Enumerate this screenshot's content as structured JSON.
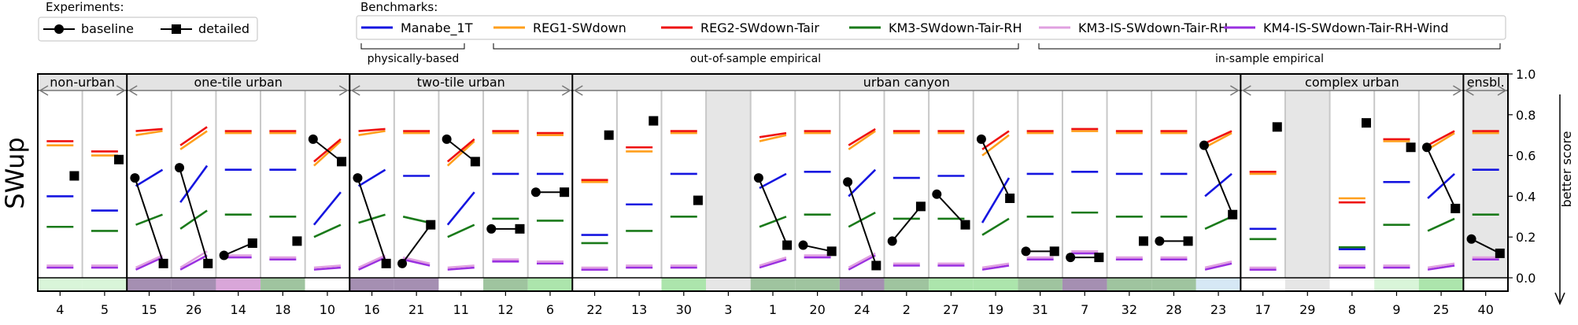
{
  "legends": {
    "experiments_title": "Experiments:",
    "benchmarks_title": "Benchmarks:",
    "experiments": [
      {
        "name": "baseline",
        "marker": "circle"
      },
      {
        "name": "detailed",
        "marker": "square"
      }
    ],
    "benchmarks": [
      {
        "name": "Manabe_1T",
        "color": "#1515e0"
      },
      {
        "name": "REG1-SWdown",
        "color": "#ff9f1c"
      },
      {
        "name": "REG2-SWdown-Tair",
        "color": "#ee1111"
      },
      {
        "name": "KM3-SWdown-Tair-RH",
        "color": "#1a7a1a"
      },
      {
        "name": "KM3-IS-SWdown-Tair-RH",
        "color": "#e0a0e0"
      },
      {
        "name": "KM4-IS-SWdown-Tair-RH-Wind",
        "color": "#9a30e0"
      }
    ],
    "benchmark_groups": [
      "physically-based",
      "out-of-sample empirical",
      "in-sample empirical"
    ]
  },
  "chart_data": {
    "type": "scatter",
    "ylabel": "SWup",
    "ylim": [
      0.0,
      1.0
    ],
    "yticks": [
      "0.0",
      "0.2",
      "0.4",
      "0.6",
      "0.8",
      "1.0"
    ],
    "better_score_label": "better score",
    "groups": [
      {
        "label": "non-urban",
        "columns": [
          0,
          1
        ]
      },
      {
        "label": "one-tile urban",
        "columns": [
          2,
          6
        ]
      },
      {
        "label": "two-tile urban",
        "columns": [
          7,
          11
        ]
      },
      {
        "label": "urban canyon",
        "columns": [
          12,
          26
        ]
      },
      {
        "label": "complex urban",
        "columns": [
          27,
          31
        ]
      },
      {
        "label": "ensbl.",
        "columns": [
          32,
          32
        ]
      }
    ],
    "sites": [
      {
        "id": "4",
        "grey": false,
        "baseline": null,
        "detailed": 0.5,
        "manabe": 0.4,
        "reg1": 0.65,
        "reg2": 0.67,
        "km3": 0.25,
        "km3is": 0.06,
        "km4is": 0.05,
        "strip": "#d9f5d9"
      },
      {
        "id": "5",
        "grey": false,
        "baseline": null,
        "detailed": 0.58,
        "manabe": 0.33,
        "reg1": 0.6,
        "reg2": 0.62,
        "km3": 0.23,
        "km3is": 0.06,
        "km4is": 0.05,
        "strip": "#d9f5d9"
      },
      {
        "id": "15",
        "grey": false,
        "baseline": 0.49,
        "detailed": 0.07,
        "manabe": [
          0.45,
          0.53
        ],
        "reg1": [
          0.7,
          0.72
        ],
        "reg2": [
          0.72,
          0.73
        ],
        "km3": [
          0.26,
          0.31
        ],
        "km3is": [
          0.05,
          0.11
        ],
        "km4is": [
          0.04,
          0.1
        ],
        "strip": "#a58fb2"
      },
      {
        "id": "26",
        "grey": false,
        "baseline": 0.54,
        "detailed": 0.07,
        "manabe": [
          0.37,
          0.55
        ],
        "reg1": [
          0.63,
          0.72
        ],
        "reg2": [
          0.65,
          0.74
        ],
        "km3": [
          0.24,
          0.33
        ],
        "km3is": [
          0.05,
          0.13
        ],
        "km4is": [
          0.04,
          0.11
        ],
        "strip": "#a58fb2"
      },
      {
        "id": "14",
        "grey": false,
        "baseline": 0.11,
        "detailed": 0.17,
        "manabe": 0.53,
        "reg1": 0.71,
        "reg2": 0.72,
        "km3": 0.31,
        "km3is": 0.11,
        "km4is": 0.1,
        "strip": "#d9a6d9"
      },
      {
        "id": "18",
        "grey": false,
        "baseline": null,
        "detailed": 0.18,
        "manabe": 0.53,
        "reg1": 0.71,
        "reg2": 0.72,
        "km3": 0.3,
        "km3is": 0.1,
        "km4is": 0.09,
        "strip": "#9fc49f"
      },
      {
        "id": "10",
        "grey": false,
        "baseline": 0.68,
        "detailed": 0.57,
        "manabe": [
          0.26,
          0.42
        ],
        "reg1": [
          0.55,
          0.67
        ],
        "reg2": [
          0.57,
          0.68
        ],
        "km3": [
          0.2,
          0.26
        ],
        "km3is": [
          0.05,
          0.06
        ],
        "km4is": [
          0.04,
          0.05
        ],
        "strip": "#ffffff"
      },
      {
        "id": "16",
        "grey": false,
        "baseline": 0.49,
        "detailed": 0.07,
        "manabe": [
          0.45,
          0.53
        ],
        "reg1": [
          0.7,
          0.72
        ],
        "reg2": [
          0.72,
          0.73
        ],
        "km3": [
          0.27,
          0.31
        ],
        "km3is": [
          0.05,
          0.11
        ],
        "km4is": [
          0.04,
          0.1
        ],
        "strip": "#a58fb2"
      },
      {
        "id": "21",
        "grey": false,
        "baseline": 0.07,
        "detailed": 0.26,
        "manabe": 0.5,
        "reg1": 0.71,
        "reg2": 0.72,
        "km3": [
          0.3,
          0.27
        ],
        "km3is": [
          0.1,
          0.07
        ],
        "km4is": [
          0.09,
          0.06
        ],
        "strip": "#a58fb2"
      },
      {
        "id": "11",
        "grey": false,
        "baseline": 0.68,
        "detailed": 0.57,
        "manabe": [
          0.26,
          0.42
        ],
        "reg1": [
          0.55,
          0.67
        ],
        "reg2": [
          0.57,
          0.68
        ],
        "km3": [
          0.2,
          0.26
        ],
        "km3is": [
          0.05,
          0.06
        ],
        "km4is": [
          0.04,
          0.05
        ],
        "strip": "#ffffff"
      },
      {
        "id": "12",
        "grey": false,
        "baseline": 0.24,
        "detailed": 0.24,
        "manabe": 0.51,
        "reg1": 0.71,
        "reg2": 0.72,
        "km3": 0.29,
        "km3is": 0.09,
        "km4is": 0.08,
        "strip": "#9fc49f"
      },
      {
        "id": "6",
        "grey": false,
        "baseline": 0.42,
        "detailed": 0.42,
        "manabe": 0.51,
        "reg1": 0.7,
        "reg2": 0.71,
        "km3": 0.28,
        "km3is": 0.08,
        "km4is": 0.07,
        "strip": "#ace5ac"
      },
      {
        "id": "22",
        "grey": false,
        "baseline": null,
        "detailed": 0.7,
        "manabe": 0.21,
        "reg1": 0.47,
        "reg2": 0.48,
        "km3": 0.17,
        "km3is": 0.05,
        "km4is": 0.04,
        "strip": "#ffffff"
      },
      {
        "id": "13",
        "grey": false,
        "baseline": null,
        "detailed": 0.77,
        "manabe": 0.36,
        "reg1": 0.62,
        "reg2": 0.64,
        "km3": 0.23,
        "km3is": 0.06,
        "km4is": 0.05,
        "strip": "#ffffff"
      },
      {
        "id": "30",
        "grey": false,
        "baseline": null,
        "detailed": 0.38,
        "manabe": 0.51,
        "reg1": 0.71,
        "reg2": 0.72,
        "km3": 0.3,
        "km3is": 0.06,
        "km4is": 0.05,
        "strip": "#ace5ac"
      },
      {
        "id": "3",
        "grey": true,
        "baseline": null,
        "detailed": null,
        "manabe": null,
        "reg1": null,
        "reg2": null,
        "km3": null,
        "km3is": null,
        "km4is": null,
        "strip": "#e6e6e6"
      },
      {
        "id": "1",
        "grey": false,
        "baseline": 0.49,
        "detailed": 0.16,
        "manabe": [
          0.44,
          0.51
        ],
        "reg1": [
          0.67,
          0.7
        ],
        "reg2": [
          0.69,
          0.71
        ],
        "km3": [
          0.25,
          0.3
        ],
        "km3is": [
          0.06,
          0.1
        ],
        "km4is": [
          0.05,
          0.09
        ],
        "strip": "#9fc49f"
      },
      {
        "id": "20",
        "grey": false,
        "baseline": 0.16,
        "detailed": 0.13,
        "manabe": 0.52,
        "reg1": 0.71,
        "reg2": 0.72,
        "km3": 0.31,
        "km3is": 0.11,
        "km4is": 0.1,
        "strip": "#9fc49f"
      },
      {
        "id": "24",
        "grey": false,
        "baseline": 0.47,
        "detailed": 0.06,
        "manabe": [
          0.4,
          0.53
        ],
        "reg1": [
          0.63,
          0.72
        ],
        "reg2": [
          0.65,
          0.73
        ],
        "km3": [
          0.25,
          0.32
        ],
        "km3is": [
          0.05,
          0.12
        ],
        "km4is": [
          0.04,
          0.11
        ],
        "strip": "#a58fb2"
      },
      {
        "id": "2",
        "grey": false,
        "baseline": 0.18,
        "detailed": 0.35,
        "manabe": 0.49,
        "reg1": 0.71,
        "reg2": 0.72,
        "km3": 0.29,
        "km3is": 0.07,
        "km4is": 0.06,
        "strip": "#9fc49f"
      },
      {
        "id": "27",
        "grey": false,
        "baseline": 0.41,
        "detailed": 0.26,
        "manabe": 0.5,
        "reg1": 0.71,
        "reg2": 0.72,
        "km3": 0.29,
        "km3is": 0.07,
        "km4is": 0.06,
        "strip": "#ace5ac"
      },
      {
        "id": "19",
        "grey": false,
        "baseline": 0.68,
        "detailed": 0.39,
        "manabe": [
          0.27,
          0.49
        ],
        "reg1": [
          0.6,
          0.7
        ],
        "reg2": [
          0.63,
          0.72
        ],
        "km3": [
          0.21,
          0.29
        ],
        "km3is": [
          0.05,
          0.07
        ],
        "km4is": [
          0.04,
          0.06
        ],
        "strip": "#ace5ac"
      },
      {
        "id": "31",
        "grey": false,
        "baseline": 0.13,
        "detailed": 0.13,
        "manabe": 0.51,
        "reg1": 0.71,
        "reg2": 0.72,
        "km3": 0.3,
        "km3is": 0.1,
        "km4is": 0.09,
        "strip": "#9fc49f"
      },
      {
        "id": "7",
        "grey": false,
        "baseline": 0.1,
        "detailed": 0.1,
        "manabe": 0.52,
        "reg1": 0.72,
        "reg2": 0.73,
        "km3": 0.32,
        "km3is": 0.13,
        "km4is": 0.12,
        "strip": "#a58fb2"
      },
      {
        "id": "32",
        "grey": false,
        "baseline": null,
        "detailed": 0.18,
        "manabe": 0.51,
        "reg1": 0.71,
        "reg2": 0.72,
        "km3": 0.3,
        "km3is": 0.1,
        "km4is": 0.09,
        "strip": "#9fc49f"
      },
      {
        "id": "28",
        "grey": false,
        "baseline": 0.18,
        "detailed": 0.18,
        "manabe": 0.51,
        "reg1": 0.71,
        "reg2": 0.72,
        "km3": 0.3,
        "km3is": 0.1,
        "km4is": 0.09,
        "strip": "#9fc49f"
      },
      {
        "id": "23",
        "grey": false,
        "baseline": 0.65,
        "detailed": 0.31,
        "manabe": [
          0.4,
          0.51
        ],
        "reg1": [
          0.64,
          0.71
        ],
        "reg2": [
          0.66,
          0.72
        ],
        "km3": [
          0.24,
          0.3
        ],
        "km3is": [
          0.05,
          0.08
        ],
        "km4is": [
          0.04,
          0.07
        ],
        "strip": "#d6e8f5"
      },
      {
        "id": "17",
        "grey": false,
        "baseline": null,
        "detailed": 0.74,
        "manabe": 0.24,
        "reg1": 0.51,
        "reg2": 0.52,
        "km3": 0.19,
        "km3is": 0.05,
        "km4is": 0.04,
        "strip": "#ffffff"
      },
      {
        "id": "29",
        "grey": true,
        "baseline": null,
        "detailed": null,
        "manabe": null,
        "reg1": null,
        "reg2": null,
        "km3": null,
        "km3is": null,
        "km4is": null,
        "strip": "#e6e6e6"
      },
      {
        "id": "8",
        "grey": false,
        "baseline": null,
        "detailed": 0.76,
        "manabe": 0.14,
        "reg1": 0.39,
        "reg2": 0.37,
        "km3": 0.15,
        "km3is": 0.06,
        "km4is": 0.05,
        "strip": "#ffffff"
      },
      {
        "id": "9",
        "grey": false,
        "baseline": null,
        "detailed": 0.64,
        "manabe": 0.47,
        "reg1": 0.67,
        "reg2": 0.68,
        "km3": 0.26,
        "km3is": 0.06,
        "km4is": 0.05,
        "strip": "#d9f5d9"
      },
      {
        "id": "25",
        "grey": false,
        "baseline": 0.64,
        "detailed": 0.34,
        "manabe": [
          0.39,
          0.51
        ],
        "reg1": [
          0.63,
          0.71
        ],
        "reg2": [
          0.65,
          0.72
        ],
        "km3": [
          0.23,
          0.29
        ],
        "km3is": [
          0.05,
          0.07
        ],
        "km4is": [
          0.04,
          0.06
        ],
        "strip": "#ace5ac"
      },
      {
        "id": "40",
        "grey": true,
        "baseline": 0.19,
        "detailed": 0.12,
        "manabe": 0.53,
        "reg1": 0.71,
        "reg2": 0.72,
        "km3": 0.31,
        "km3is": 0.1,
        "km4is": 0.09,
        "strip": "#ffffff"
      }
    ]
  }
}
